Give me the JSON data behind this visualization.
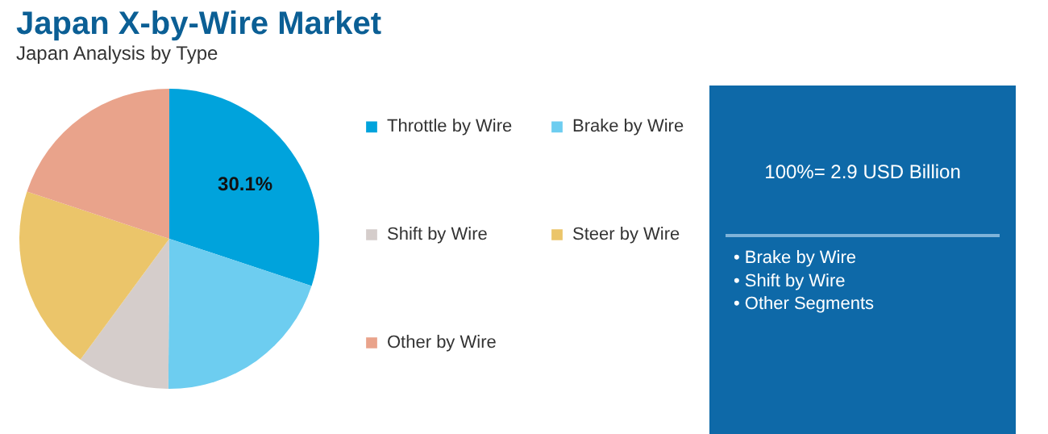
{
  "chart_data": {
    "type": "pie",
    "title": "Japan X-by-Wire Market",
    "subtitle": "Japan Analysis by Type",
    "categories": [
      "Throttle by Wire",
      "Brake by Wire",
      "Shift by Wire",
      "Steer by Wire",
      "Other by Wire"
    ],
    "values": [
      30.1,
      20,
      10,
      20,
      19.9
    ],
    "colors": [
      "#00a3dc",
      "#6dcdf0",
      "#d5cdcb",
      "#ebc56a",
      "#e9a38b"
    ],
    "value_labels": [
      "30.1%",
      null,
      null,
      null,
      null
    ],
    "legend": "right",
    "annotations": [
      "100%= 2.9 USD Billion",
      "• Brake by Wire",
      "• Shift by Wire",
      "• Other Segments"
    ]
  }
}
